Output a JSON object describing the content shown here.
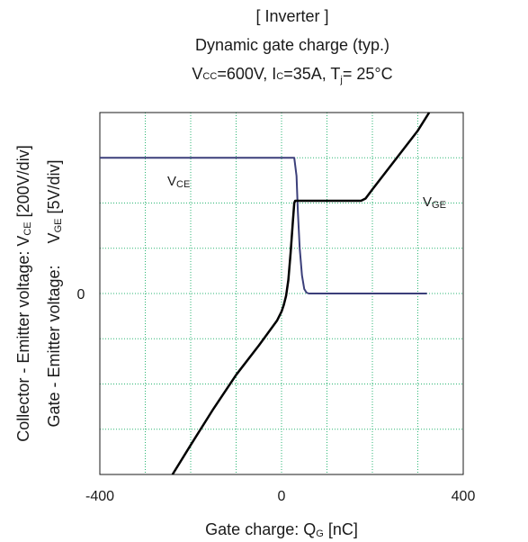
{
  "chart_data": {
    "type": "line",
    "title_lines": {
      "line1": "[ Inverter ]",
      "line2": "Dynamic gate charge  (typ.)",
      "line3": {
        "v": "V",
        "v_sub": "CC",
        "v_val": "=600V, ",
        "i": "I",
        "i_sub": "C",
        "i_val": "=35A, ",
        "t": "T",
        "t_sub": "j",
        "t_val": "= 25°C"
      }
    },
    "xlabel": {
      "main": "Gate charge: Q",
      "sub": "G",
      "unit": " [nC]"
    },
    "ylabel_outer": {
      "main": "Collector - Emitter voltage: V",
      "sub": "CE",
      "unit": " [200V/div]"
    },
    "ylabel_inner": {
      "main": "Gate - Emitter voltage:",
      "v": "V",
      "sub": "GE",
      "unit": " [5V/div]"
    },
    "xlim": [
      -400,
      400
    ],
    "ylim_div": [
      -4,
      4
    ],
    "x_ticks": [
      "-400",
      "0",
      "400"
    ],
    "y_tick_zero": "0",
    "grid": true,
    "grid_color": "#2bb673",
    "series": [
      {
        "name": "VCE",
        "label_main": "V",
        "label_sub": "CE",
        "color": "#3b3f7a",
        "x": [
          -400,
          0,
          28,
          33,
          36,
          40,
          45,
          50,
          55,
          60,
          70,
          100,
          200,
          300,
          320
        ],
        "y": [
          3,
          3,
          3,
          2.6,
          1.8,
          1.0,
          0.4,
          0.1,
          0.02,
          0,
          0,
          0,
          0,
          0,
          0
        ]
      },
      {
        "name": "VGE",
        "label_main": "V",
        "label_sub": "GE",
        "color": "#000000",
        "x": [
          -240,
          -200,
          -150,
          -100,
          -50,
          -10,
          0,
          5,
          10,
          15,
          20,
          25,
          28,
          30,
          50,
          100,
          150,
          175,
          185,
          200,
          250,
          300,
          325
        ],
        "y": [
          -4,
          -3.35,
          -2.55,
          -1.8,
          -1.15,
          -0.6,
          -0.4,
          -0.25,
          -0.05,
          0.3,
          0.9,
          1.6,
          2.0,
          2.05,
          2.05,
          2.05,
          2.05,
          2.05,
          2.1,
          2.3,
          2.95,
          3.6,
          4
        ]
      }
    ]
  }
}
